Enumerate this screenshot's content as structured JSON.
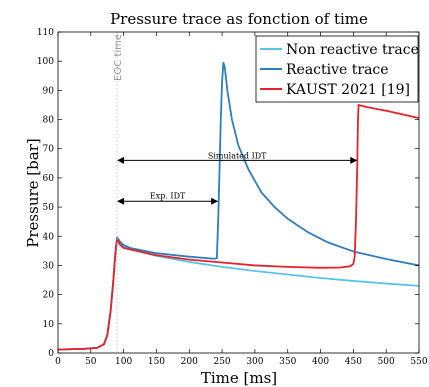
{
  "chart_data": {
    "type": "line",
    "title": "Pressure trace as fonction of time",
    "xlabel": "Time [ms]",
    "ylabel": "Pressure [bar]",
    "xlim": [
      0,
      550
    ],
    "ylim": [
      0,
      110
    ],
    "xticks": [
      "0",
      "50",
      "100",
      "150",
      "200",
      "250",
      "300",
      "350",
      "400",
      "450",
      "500",
      "550"
    ],
    "yticks": [
      "0",
      "10",
      "20",
      "30",
      "40",
      "50",
      "60",
      "70",
      "80",
      "90",
      "100",
      "110"
    ],
    "grid": false,
    "legend_position": "top-right",
    "series": [
      {
        "name": "Non reactive trace",
        "color": "#5bc2ea",
        "points": [
          [
            0,
            1.2
          ],
          [
            40,
            1.4
          ],
          [
            60,
            1.8
          ],
          [
            70,
            3
          ],
          [
            75,
            6
          ],
          [
            80,
            14
          ],
          [
            84,
            24
          ],
          [
            87,
            33
          ],
          [
            89,
            37.5
          ],
          [
            90,
            39
          ],
          [
            92,
            38.5
          ],
          [
            95,
            37.5
          ],
          [
            100,
            36.5
          ],
          [
            110,
            35.5
          ],
          [
            150,
            33.3
          ],
          [
            200,
            31.2
          ],
          [
            250,
            29.5
          ],
          [
            300,
            28.1
          ],
          [
            350,
            26.9
          ],
          [
            400,
            25.7
          ],
          [
            450,
            24.7
          ],
          [
            500,
            23.8
          ],
          [
            550,
            23
          ]
        ]
      },
      {
        "name": "Reactive trace",
        "color": "#2f7dbf",
        "points": [
          [
            0,
            1.2
          ],
          [
            40,
            1.4
          ],
          [
            60,
            1.8
          ],
          [
            70,
            3
          ],
          [
            75,
            6
          ],
          [
            80,
            14
          ],
          [
            84,
            24
          ],
          [
            87,
            33
          ],
          [
            89,
            37.5
          ],
          [
            90,
            39.5
          ],
          [
            92,
            39
          ],
          [
            95,
            38
          ],
          [
            100,
            37
          ],
          [
            110,
            36
          ],
          [
            150,
            34.2
          ],
          [
            200,
            33
          ],
          [
            238,
            32.3
          ],
          [
            242,
            32.5
          ],
          [
            244,
            45
          ],
          [
            246,
            62
          ],
          [
            248,
            80
          ],
          [
            250,
            93
          ],
          [
            252,
            99.5
          ],
          [
            254,
            98
          ],
          [
            258,
            90
          ],
          [
            265,
            80
          ],
          [
            275,
            71
          ],
          [
            290,
            63
          ],
          [
            310,
            55
          ],
          [
            330,
            50
          ],
          [
            350,
            46
          ],
          [
            380,
            41.5
          ],
          [
            410,
            38
          ],
          [
            450,
            34.8
          ],
          [
            500,
            32.2
          ],
          [
            550,
            30
          ]
        ]
      },
      {
        "name": "KAUST 2021 [19]",
        "color": "#e8222a",
        "points": [
          [
            0,
            1.2
          ],
          [
            40,
            1.4
          ],
          [
            60,
            1.8
          ],
          [
            70,
            3
          ],
          [
            75,
            6
          ],
          [
            80,
            14
          ],
          [
            84,
            24
          ],
          [
            87,
            33
          ],
          [
            89,
            37.5
          ],
          [
            90,
            39
          ],
          [
            92,
            38
          ],
          [
            95,
            37
          ],
          [
            100,
            36
          ],
          [
            150,
            33.5
          ],
          [
            200,
            32
          ],
          [
            250,
            31
          ],
          [
            300,
            30
          ],
          [
            350,
            29.5
          ],
          [
            400,
            29.2
          ],
          [
            430,
            29.3
          ],
          [
            445,
            29.7
          ],
          [
            450,
            30.5
          ],
          [
            452,
            33
          ],
          [
            454,
            45
          ],
          [
            456,
            65
          ],
          [
            457,
            80
          ],
          [
            458,
            85
          ],
          [
            470,
            84.3
          ],
          [
            500,
            83
          ],
          [
            530,
            81.5
          ],
          [
            550,
            80.5
          ]
        ]
      }
    ],
    "annotations": {
      "eoc_label": "EOC time",
      "eoc_x": 90,
      "simulated_idt_label": "Simulated IDT",
      "simulated_idt": {
        "x_start": 90,
        "x_end": 456,
        "y": 66
      },
      "exp_idt_label": "Exp. IDT",
      "exp_idt": {
        "x_start": 90,
        "x_end": 244,
        "y": 52
      }
    }
  }
}
